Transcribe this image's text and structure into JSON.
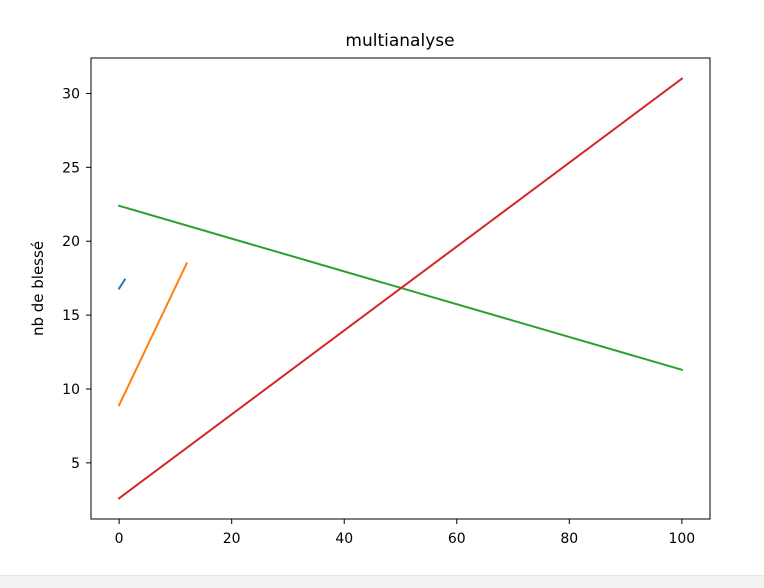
{
  "chart_data": {
    "type": "line",
    "title": "multianalyse",
    "xlabel": "",
    "ylabel": "nb de blessé",
    "xlim": [
      -5,
      105
    ],
    "ylim": [
      1.2,
      32.4
    ],
    "xticks": [
      0,
      20,
      40,
      60,
      80,
      100
    ],
    "yticks": [
      5,
      10,
      15,
      20,
      25,
      30
    ],
    "xtick_labels": [
      "0",
      "20",
      "40",
      "60",
      "80",
      "100"
    ],
    "ytick_labels": [
      "5",
      "10",
      "15",
      "20",
      "25",
      "30"
    ],
    "grid": false,
    "series": [
      {
        "color": "#1f77b4",
        "x": [
          0,
          1
        ],
        "y": [
          16.8,
          17.4
        ]
      },
      {
        "color": "#ff7f0e",
        "x": [
          0,
          12
        ],
        "y": [
          8.9,
          18.5
        ]
      },
      {
        "color": "#2ca02c",
        "x": [
          0,
          100
        ],
        "y": [
          22.4,
          11.3
        ]
      },
      {
        "color": "#d62728",
        "x": [
          0,
          100
        ],
        "y": [
          2.6,
          31.0
        ]
      }
    ]
  }
}
